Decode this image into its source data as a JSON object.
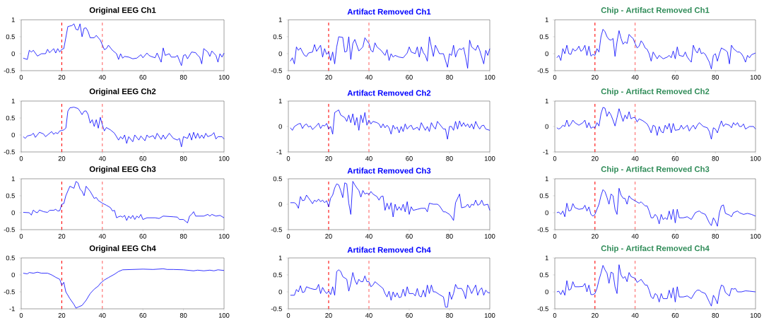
{
  "chart_data": [
    {
      "type": "line",
      "title": "Original EEG Ch1",
      "xlim": [
        0,
        100
      ],
      "xticks": [
        0,
        20,
        40,
        60,
        80,
        100
      ],
      "ylim": [
        -0.5,
        1
      ],
      "yticks": [
        -0.5,
        0,
        0.5,
        1
      ],
      "ref_lines": [
        {
          "axis": "x",
          "value": 20,
          "color": "#ff0000",
          "line_style": "dashed"
        },
        {
          "axis": "x",
          "value": 40,
          "color": "#ff6666",
          "line_style": "dashed"
        }
      ],
      "x": [
        1,
        3,
        4,
        5,
        6,
        8,
        10,
        12,
        13,
        14,
        16,
        17,
        18,
        19,
        20,
        21,
        23,
        25,
        26,
        27,
        28,
        29,
        30,
        31,
        32,
        33,
        34,
        36,
        37,
        39,
        41,
        42,
        43,
        45,
        47,
        48,
        49,
        50,
        51,
        53,
        55,
        57,
        59,
        60,
        62,
        63,
        64,
        66,
        67,
        69,
        70,
        71,
        73,
        74,
        76,
        77,
        79,
        80,
        81,
        82,
        84,
        86,
        87,
        88,
        89,
        90,
        92,
        93,
        94,
        96,
        97,
        98,
        99,
        100
      ],
      "series": [
        {
          "color": "#0000ff",
          "values": [
            -0.13,
            -0.17,
            0.1,
            0.05,
            0.1,
            -0.07,
            0,
            0,
            0.13,
            0.03,
            0.15,
            0.02,
            0.15,
            0.05,
            0.13,
            0.15,
            0.8,
            0.83,
            0.88,
            0.72,
            0.7,
            0.88,
            0.5,
            0.75,
            0.76,
            0.65,
            0.47,
            0.47,
            0.54,
            0.4,
            0.12,
            0.15,
            0.25,
            0.1,
            0,
            -0.17,
            0,
            -0.13,
            -0.08,
            -0.1,
            -0.15,
            -0.13,
            -0.03,
            -0.12,
            0.02,
            -0.05,
            -0.08,
            -0.12,
            0.02,
            -0.25,
            0.17,
            -0.05,
            0,
            -0.1,
            -0.1,
            -0.05,
            -0.35,
            -0.05,
            -0.03,
            -0.15,
            0.05,
            0.03,
            -0.05,
            -0.1,
            -0.3,
            0.15,
            0.05,
            -0.08,
            0.08,
            -0.05,
            -0.25,
            0,
            -0.1,
            0.02
          ]
        }
      ]
    },
    {
      "type": "line",
      "title": "Artifact Removed Ch1",
      "xlim": [
        0,
        100
      ],
      "xticks": [
        0,
        20,
        40,
        60,
        80,
        100
      ],
      "ylim": [
        -0.5,
        1
      ],
      "yticks": [
        -0.5,
        0,
        0.5,
        1
      ],
      "ref_lines": [
        {
          "axis": "x",
          "value": 20,
          "color": "#ff0000",
          "line_style": "dashed"
        },
        {
          "axis": "x",
          "value": 40,
          "color": "#ff6666",
          "line_style": "dashed"
        }
      ],
      "x": [
        1,
        2,
        3,
        4,
        5,
        6,
        7,
        8,
        9,
        10,
        12,
        13,
        14,
        16,
        17,
        18,
        19,
        20,
        21,
        22,
        23,
        24,
        25,
        27,
        28,
        29,
        30,
        31,
        32,
        33,
        34,
        35,
        37,
        38,
        40,
        41,
        42,
        43,
        44,
        46,
        48,
        49,
        50,
        51,
        52,
        53,
        55,
        57,
        59,
        60,
        61,
        63,
        64,
        65,
        66,
        67,
        68,
        69,
        70,
        71,
        72,
        73,
        75,
        77,
        79,
        80,
        81,
        82,
        83,
        84,
        85,
        86,
        87,
        88,
        89,
        90,
        91,
        93,
        94,
        95,
        97,
        98,
        99,
        100
      ],
      "series": [
        {
          "color": "#0000ff",
          "values": [
            -0.22,
            -0.12,
            -0.3,
            0.2,
            0.1,
            0.17,
            0.05,
            -0.05,
            -0.08,
            0.02,
            0.05,
            0.27,
            0.07,
            0.25,
            -0.1,
            0.15,
            -0.02,
            0.05,
            -0.2,
            0.05,
            -0.3,
            0.2,
            0.5,
            0.48,
            0.05,
            0.07,
            0.5,
            -0.17,
            0.3,
            0.42,
            0.25,
            0.08,
            0.2,
            0.47,
            0.3,
            0.1,
            0.05,
            0.32,
            0.2,
            0.1,
            -0.05,
            0.12,
            -0.2,
            0,
            -0.1,
            -0.05,
            -0.1,
            -0.12,
            0.02,
            0.2,
            0.05,
            0,
            0.2,
            -0.1,
            0.2,
            0.03,
            -0.05,
            -0.22,
            0.5,
            0.2,
            -0.08,
            0.25,
            0,
            0,
            -0.4,
            0,
            -0.05,
            0.25,
            -0.1,
            0.08,
            0.15,
            0.12,
            0.18,
            -0.1,
            -0.43,
            0.4,
            0.2,
            0.1,
            0.25,
            0.1,
            -0.3,
            0.1,
            -0.05,
            0.15
          ]
        }
      ]
    },
    {
      "type": "line",
      "title": "Chip - Artifact Removed Ch1",
      "xlim": [
        0,
        100
      ],
      "xticks": [
        0,
        20,
        40,
        60,
        80,
        100
      ],
      "ylim": [
        -0.5,
        1
      ],
      "yticks": [
        -0.5,
        0,
        0.5,
        1
      ],
      "ref_lines": [
        {
          "axis": "x",
          "value": 20,
          "color": "#ff0000",
          "line_style": "dashed"
        },
        {
          "axis": "x",
          "value": 40,
          "color": "#ff6666",
          "line_style": "dashed"
        }
      ],
      "x": [
        1,
        2,
        3,
        4,
        5,
        6,
        7,
        8,
        9,
        10,
        11,
        12,
        13,
        14,
        15,
        16,
        17,
        18,
        19,
        20,
        21,
        22,
        23,
        24,
        25,
        26,
        27,
        28,
        29,
        30,
        31,
        32,
        33,
        34,
        35,
        36,
        37,
        38,
        39,
        40,
        41,
        42,
        43,
        44,
        45,
        46,
        47,
        48,
        49,
        50,
        51,
        52,
        54,
        56,
        57,
        58,
        59,
        60,
        61,
        62,
        64,
        65,
        66,
        67,
        68,
        69,
        70,
        71,
        72,
        73,
        74,
        75,
        77,
        78,
        79,
        80,
        81,
        82,
        83,
        85,
        86,
        87,
        88,
        89,
        90,
        91,
        92,
        93,
        94,
        95,
        96,
        97,
        98,
        100
      ],
      "series": [
        {
          "color": "#0000ff",
          "values": [
            -0.12,
            -0.05,
            -0.2,
            0.15,
            0,
            0.25,
            0,
            -0.02,
            0.15,
            0.08,
            0.12,
            0.22,
            0.07,
            0.12,
            0.25,
            -0.05,
            0.22,
            -0.07,
            -0.02,
            -0.05,
            0.15,
            0.05,
            0.5,
            0.72,
            0.65,
            0.5,
            0.42,
            0.4,
            0.45,
            -0.08,
            0.35,
            0.68,
            0.45,
            0.28,
            0.35,
            0.3,
            0.57,
            0.5,
            0.45,
            0.3,
            0.17,
            0.22,
            0.38,
            0.3,
            0.17,
            0.13,
            0,
            -0.22,
            0.05,
            -0.05,
            -0.15,
            -0.05,
            -0.15,
            -0.1,
            -0.05,
            -0.12,
            0.08,
            -0.15,
            0.2,
            -0.05,
            -0.08,
            0.05,
            -0.1,
            -0.18,
            -0.25,
            0.25,
            0.1,
            0.02,
            0.17,
            0,
            0.03,
            -0.02,
            -0.25,
            -0.45,
            -0.05,
            0,
            -0.22,
            0,
            0.17,
            0.1,
            0.05,
            -0.3,
            0.25,
            0.15,
            0.1,
            0.05,
            0.05,
            0,
            -0.1,
            -0.25,
            -0.05,
            -0.12,
            -0.03,
            0.02
          ]
        }
      ]
    },
    {
      "type": "line",
      "title": "Original EEG Ch2",
      "xlim": [
        0,
        100
      ],
      "xticks": [
        0,
        20,
        40,
        60,
        80,
        100
      ],
      "ylim": [
        -0.5,
        1
      ],
      "yticks": [
        -0.5,
        0,
        0.5,
        1
      ],
      "ref_lines": [
        {
          "axis": "x",
          "value": 20,
          "color": "#ff0000",
          "line_style": "dashed"
        },
        {
          "axis": "x",
          "value": 40,
          "color": "#ff6666",
          "line_style": "dashed"
        }
      ],
      "x": [
        1,
        2,
        3,
        5,
        6,
        7,
        9,
        11,
        12,
        14,
        15,
        16,
        17,
        18,
        19,
        20,
        21,
        22,
        23,
        24,
        26,
        28,
        29,
        30,
        31,
        32,
        33,
        34,
        35,
        36,
        37,
        38,
        39,
        40,
        41,
        42,
        44,
        46,
        48,
        49,
        50,
        51,
        52,
        53,
        55,
        56,
        58,
        59,
        61,
        62,
        63,
        65,
        66,
        67,
        69,
        70,
        71,
        73,
        75,
        77,
        78,
        79,
        80,
        82,
        83,
        84,
        85,
        86,
        87,
        88,
        89,
        90,
        91,
        92,
        94,
        95,
        96,
        97,
        99,
        100
      ],
      "series": [
        {
          "color": "#0000ff",
          "values": [
            -0.05,
            -0.1,
            -0.03,
            0,
            0.05,
            -0.07,
            0.08,
            0.03,
            -0.05,
            0.05,
            0.1,
            0.02,
            0.07,
            0.04,
            0.12,
            0.13,
            0.15,
            0.2,
            0.7,
            0.8,
            0.82,
            0.78,
            0.7,
            0.6,
            0.7,
            0.71,
            0.6,
            0.35,
            0.45,
            0.25,
            0.45,
            0.2,
            0.52,
            0.3,
            0.12,
            0.22,
            0.15,
            0.05,
            -0.15,
            -0.05,
            -0.12,
            0,
            -0.25,
            -0.05,
            -0.2,
            0,
            -0.15,
            -0.03,
            -0.17,
            0,
            -0.07,
            -0.02,
            -0.12,
            0.05,
            -0.13,
            0,
            -0.12,
            0.05,
            -0.1,
            -0.15,
            -0.1,
            -0.35,
            -0.05,
            -0.1,
            0.05,
            -0.15,
            0.08,
            -0.1,
            0.05,
            -0.1,
            0,
            -0.1,
            0.05,
            -0.05,
            0,
            0.07,
            -0.12,
            -0.05,
            -0.05,
            -0.12
          ]
        }
      ]
    },
    {
      "type": "line",
      "title": "Artifact Removed Ch2",
      "xlim": [
        0,
        100
      ],
      "xticks": [
        0,
        20,
        40,
        60,
        80,
        100
      ],
      "ylim": [
        -1,
        1
      ],
      "yticks": [
        -1,
        0,
        1
      ],
      "ref_lines": [
        {
          "axis": "x",
          "value": 20,
          "color": "#ff0000",
          "line_style": "dashed"
        },
        {
          "axis": "x",
          "value": 40,
          "color": "#ff6666",
          "line_style": "dashed"
        }
      ],
      "x": [
        1,
        2,
        3,
        4,
        5,
        6,
        7,
        8,
        9,
        10,
        11,
        12,
        14,
        15,
        16,
        17,
        18,
        19,
        20,
        21,
        22,
        23,
        24,
        25,
        26,
        28,
        29,
        30,
        31,
        32,
        33,
        34,
        35,
        36,
        37,
        38,
        39,
        40,
        41,
        42,
        44,
        45,
        46,
        47,
        48,
        49,
        50,
        51,
        52,
        53,
        54,
        55,
        56,
        57,
        58,
        59,
        60,
        61,
        62,
        64,
        65,
        66,
        68,
        69,
        70,
        71,
        72,
        73,
        74,
        76,
        77,
        78,
        79,
        80,
        81,
        82,
        83,
        84,
        85,
        86,
        87,
        88,
        89,
        90,
        91,
        92,
        93,
        94,
        95,
        96,
        97,
        98,
        100
      ],
      "series": [
        {
          "color": "#0000ff",
          "values": [
            -0.05,
            -0.15,
            0,
            0.05,
            0.1,
            0.12,
            -0.08,
            0.05,
            0.1,
            -0.02,
            0.02,
            -0.12,
            0.03,
            0.13,
            -0.08,
            0.05,
            0.02,
            0.12,
            -0.1,
            0,
            -0.3,
            0.55,
            0.6,
            0.65,
            0.45,
            0.35,
            0.2,
            0.45,
            0.15,
            0.5,
            0.05,
            0.35,
            -0.15,
            0.45,
            0.15,
            0.55,
            0.05,
            0.25,
            0.1,
            0.2,
            0.15,
            0.1,
            -0.05,
            0.1,
            -0.05,
            0.05,
            -0.05,
            -0.3,
            0.05,
            -0.1,
            -0.02,
            -0.25,
            0,
            -0.2,
            0.1,
            -0.1,
            0,
            0.05,
            -0.12,
            -0.03,
            -0.15,
            0.15,
            -0.15,
            0,
            -0.2,
            0.15,
            0,
            -0.1,
            0.2,
            0,
            -0.1,
            -0.1,
            -0.5,
            0,
            0,
            -0.15,
            0.2,
            -0.1,
            0.22,
            0,
            0.15,
            0,
            0.1,
            -0.05,
            0.1,
            -0.1,
            0.2,
            0.02,
            -0.1,
            0.03,
            0.05,
            -0.1,
            -0.15
          ]
        }
      ]
    },
    {
      "type": "line",
      "title": "Chip - Artifact Removed Ch2",
      "xlim": [
        0,
        100
      ],
      "xticks": [
        0,
        20,
        40,
        60,
        80,
        100
      ],
      "ylim": [
        -1,
        1
      ],
      "yticks": [
        -1,
        0,
        1
      ],
      "ref_lines": [
        {
          "axis": "x",
          "value": 20,
          "color": "#ff0000",
          "line_style": "dashed"
        },
        {
          "axis": "x",
          "value": 40,
          "color": "#ff6666",
          "line_style": "dashed"
        }
      ],
      "x": [
        1,
        2,
        3,
        4,
        5,
        6,
        7,
        8,
        9,
        10,
        12,
        14,
        15,
        16,
        17,
        18,
        19,
        20,
        21,
        22,
        23,
        24,
        25,
        26,
        27,
        28,
        29,
        30,
        31,
        32,
        33,
        34,
        35,
        36,
        37,
        38,
        39,
        40,
        41,
        42,
        44,
        46,
        47,
        48,
        49,
        50,
        51,
        52,
        53,
        54,
        55,
        56,
        57,
        58,
        59,
        60,
        62,
        63,
        64,
        66,
        67,
        68,
        69,
        70,
        71,
        72,
        74,
        76,
        77,
        78,
        79,
        80,
        81,
        82,
        83,
        84,
        85,
        87,
        88,
        89,
        90,
        91,
        92,
        93,
        94,
        95,
        96,
        97,
        99,
        100
      ],
      "series": [
        {
          "color": "#0000ff",
          "values": [
            -0.05,
            -0.1,
            -0.05,
            0.05,
            0,
            0.25,
            0,
            0.1,
            0.25,
            0.15,
            0.05,
            0.15,
            0.25,
            -0.05,
            0.15,
            -0.07,
            -0.02,
            -0.05,
            0.15,
            0.02,
            0.5,
            0.75,
            0.72,
            0.4,
            0.58,
            0.45,
            0.25,
            0.02,
            0.35,
            0.7,
            0.45,
            0.2,
            0.45,
            0.3,
            0.58,
            0.3,
            0.35,
            0.35,
            0.18,
            0.3,
            0.22,
            0.1,
            -0.05,
            -0.25,
            0.05,
            0,
            -0.35,
            0,
            -0.2,
            -0.25,
            0.05,
            -0.1,
            0.12,
            -0.25,
            0.12,
            -0.15,
            -0.12,
            0.05,
            -0.1,
            0.05,
            -0.18,
            -0.05,
            0.05,
            -0.1,
            0.05,
            0.15,
            0,
            -0.05,
            -0.2,
            -0.5,
            -0.05,
            -0.1,
            -0.25,
            0,
            0.22,
            0,
            0.1,
            0.05,
            -0.05,
            0.15,
            0.05,
            0.15,
            0,
            0,
            0.1,
            -0.1,
            -0.05,
            0,
            0,
            -0.1
          ]
        }
      ]
    },
    {
      "type": "line",
      "title": "Original EEG Ch3",
      "xlim": [
        0,
        100
      ],
      "xticks": [
        0,
        20,
        40,
        60,
        80,
        100
      ],
      "ylim": [
        -0.5,
        1
      ],
      "yticks": [
        -0.5,
        0,
        0.5,
        1
      ],
      "ref_lines": [
        {
          "axis": "x",
          "value": 20,
          "color": "#ff0000",
          "line_style": "dashed"
        },
        {
          "axis": "x",
          "value": 40,
          "color": "#ff6666",
          "line_style": "dashed"
        }
      ],
      "x": [
        1,
        4,
        5,
        6,
        7,
        8,
        9,
        11,
        13,
        14,
        16,
        17,
        18,
        19,
        20,
        21,
        22,
        24,
        26,
        27,
        28,
        29,
        30,
        31,
        32,
        34,
        36,
        37,
        38,
        40,
        42,
        44,
        45,
        46,
        47,
        48,
        49,
        50,
        51,
        52,
        53,
        54,
        55,
        56,
        57,
        58,
        59,
        60,
        62,
        64,
        66,
        68,
        70,
        75,
        77,
        78,
        80,
        81,
        82,
        83,
        84,
        85,
        86,
        88,
        90,
        92,
        93,
        94,
        96,
        98,
        100
      ],
      "series": [
        {
          "color": "#0000ff",
          "values": [
            0.01,
            0,
            -0.07,
            0.08,
            0.02,
            0,
            0.08,
            0.03,
            0.01,
            0.07,
            0.07,
            0.1,
            0.05,
            0.06,
            0.25,
            0.27,
            0.5,
            0.78,
            0.72,
            0.92,
            0.88,
            0.7,
            0.63,
            0.5,
            0.78,
            0.63,
            0.42,
            0.45,
            0.36,
            0.28,
            0.22,
            0.15,
            0.05,
            0.07,
            -0.15,
            -0.12,
            -0.1,
            -0.13,
            -0.08,
            -0.23,
            -0.1,
            -0.17,
            -0.08,
            -0.2,
            -0.1,
            -0.15,
            -0.05,
            -0.2,
            -0.15,
            -0.15,
            -0.15,
            -0.17,
            -0.1,
            -0.12,
            -0.13,
            -0.2,
            -0.2,
            -0.25,
            -0.3,
            -0.1,
            -0.05,
            0.03,
            -0.1,
            -0.1,
            -0.1,
            -0.05,
            -0.1,
            -0.05,
            -0.1,
            -0.08,
            -0.15
          ]
        }
      ]
    },
    {
      "type": "line",
      "title": "Artifact Removed Ch3",
      "xlim": [
        0,
        100
      ],
      "xticks": [
        0,
        20,
        40,
        60,
        80,
        100
      ],
      "ylim": [
        -0.5,
        0.5
      ],
      "yticks": [
        -0.5,
        0,
        0.5
      ],
      "ref_lines": [
        {
          "axis": "x",
          "value": 20,
          "color": "#ff0000",
          "line_style": "dashed"
        },
        {
          "axis": "x",
          "value": 40,
          "color": "#ff6666",
          "line_style": "dashed"
        }
      ],
      "x": [
        1,
        3,
        4,
        5,
        6,
        7,
        8,
        9,
        11,
        12,
        13,
        14,
        15,
        16,
        17,
        18,
        19,
        20,
        21,
        22,
        23,
        24,
        25,
        26,
        27,
        28,
        29,
        30,
        31,
        32,
        33,
        34,
        35,
        36,
        37,
        38,
        39,
        40,
        41,
        42,
        44,
        45,
        46,
        47,
        48,
        49,
        50,
        51,
        52,
        53,
        54,
        55,
        56,
        57,
        58,
        59,
        60,
        61,
        62,
        64,
        66,
        68,
        69,
        70,
        72,
        74,
        75,
        77,
        78,
        80,
        81,
        82,
        83,
        85,
        86,
        88,
        89,
        90,
        91,
        92,
        93,
        94,
        95,
        96,
        97,
        99,
        100
      ],
      "series": [
        {
          "color": "#0000ff",
          "values": [
            0.03,
            0.03,
            0,
            -0.08,
            0.15,
            0.07,
            0.08,
            0.18,
            0.07,
            0.01,
            0.08,
            0.05,
            0.1,
            0.05,
            0.08,
            0.03,
            0.07,
            -0.05,
            0.12,
            0.18,
            0.32,
            0.4,
            0.38,
            0.27,
            0.13,
            0.42,
            0.4,
            0.02,
            -0.2,
            0.45,
            0.38,
            0.32,
            0.27,
            0.14,
            0.27,
            0.2,
            0.22,
            0.19,
            0.25,
            0.2,
            0.15,
            0.08,
            0.15,
            0.16,
            -0.12,
            0.02,
            -0.1,
            0.03,
            -0.25,
            0,
            -0.12,
            -0.05,
            -0.12,
            0,
            -0.15,
            0.05,
            -0.2,
            -0.05,
            -0.12,
            -0.1,
            -0.08,
            -0.08,
            -0.15,
            0.02,
            0,
            0,
            -0.03,
            -0.15,
            -0.15,
            -0.2,
            -0.25,
            -0.32,
            0.03,
            0.2,
            -0.07,
            -0.05,
            0,
            -0.07,
            0,
            -0.02,
            0.08,
            -0.02,
            0,
            0.08,
            -0.02,
            0,
            -0.12
          ]
        }
      ]
    },
    {
      "type": "line",
      "title": "Chip - Artifact Removed Ch3",
      "xlim": [
        0,
        100
      ],
      "xticks": [
        0,
        20,
        40,
        60,
        80,
        100
      ],
      "ylim": [
        -0.5,
        1
      ],
      "yticks": [
        -0.5,
        0,
        0.5,
        1
      ],
      "ref_lines": [
        {
          "axis": "x",
          "value": 20,
          "color": "#ff0000",
          "line_style": "dashed"
        },
        {
          "axis": "x",
          "value": 40,
          "color": "#ff6666",
          "line_style": "dashed"
        }
      ],
      "x": [
        1,
        2,
        3,
        4,
        5,
        6,
        7,
        8,
        9,
        10,
        12,
        14,
        15,
        16,
        17,
        18,
        19,
        20,
        21,
        22,
        23,
        24,
        25,
        26,
        27,
        28,
        29,
        30,
        31,
        32,
        33,
        34,
        35,
        36,
        37,
        38,
        40,
        42,
        43,
        45,
        46,
        47,
        48,
        49,
        50,
        51,
        52,
        53,
        54,
        55,
        56,
        57,
        58,
        59,
        60,
        61,
        62,
        64,
        66,
        68,
        69,
        70,
        71,
        72,
        73,
        75,
        77,
        78,
        79,
        80,
        81,
        82,
        83,
        84,
        85,
        87,
        88,
        89,
        91,
        92,
        94,
        96,
        98,
        100
      ],
      "series": [
        {
          "color": "#0000ff",
          "values": [
            0,
            0.02,
            -0.05,
            0.05,
            -0.12,
            0.28,
            0.05,
            0.07,
            0.27,
            0.15,
            0.1,
            0.12,
            0.22,
            0.05,
            0.17,
            -0.05,
            -0.1,
            -0.05,
            0.1,
            0.25,
            0.5,
            0.68,
            0.62,
            0.45,
            0.25,
            0.55,
            0.5,
            0.1,
            -0.05,
            0.72,
            0.52,
            0.43,
            0.42,
            0.25,
            0.5,
            0.42,
            0.35,
            0.28,
            0.32,
            0.2,
            0.2,
            0.05,
            -0.15,
            -0.15,
            -0.05,
            -0.12,
            -0.33,
            -0.05,
            -0.2,
            -0.15,
            -0.2,
            0.05,
            -0.2,
            0.1,
            -0.3,
            0.1,
            -0.15,
            -0.15,
            -0.12,
            -0.2,
            -0.1,
            0,
            0.03,
            0.05,
            0,
            -0.05,
            -0.3,
            -0.38,
            -0.15,
            -0.25,
            -0.4,
            0,
            0.2,
            0.23,
            -0.02,
            -0.07,
            -0.12,
            0,
            0.05,
            0,
            -0.05,
            -0.02,
            -0.05,
            -0.1
          ]
        }
      ]
    },
    {
      "type": "line",
      "title": "Original EEG Ch4",
      "xlim": [
        0,
        100
      ],
      "xticks": [
        0,
        20,
        40,
        60,
        80,
        100
      ],
      "ylim": [
        -1,
        0.5
      ],
      "yticks": [
        -1,
        -0.5,
        0,
        0.5
      ],
      "ref_lines": [
        {
          "axis": "x",
          "value": 20,
          "color": "#ff0000",
          "line_style": "dashed"
        },
        {
          "axis": "x",
          "value": 40,
          "color": "#ff6666",
          "line_style": "dashed"
        }
      ],
      "x": [
        1,
        3,
        4,
        6,
        8,
        10,
        13,
        15,
        17,
        19,
        20,
        21,
        22,
        24,
        26,
        27,
        28,
        30,
        32,
        34,
        36,
        38,
        39,
        41,
        43,
        46,
        48,
        50,
        55,
        60,
        65,
        70,
        72,
        75,
        80,
        85,
        87,
        90,
        93,
        95,
        97,
        100
      ],
      "series": [
        {
          "color": "#0000ff",
          "values": [
            0.05,
            0.03,
            0.07,
            0.05,
            0.08,
            0.05,
            0.05,
            0,
            -0.07,
            -0.13,
            -0.3,
            -0.22,
            -0.5,
            -0.7,
            -0.87,
            -0.98,
            -0.95,
            -0.9,
            -0.75,
            -0.55,
            -0.42,
            -0.33,
            -0.25,
            -0.15,
            -0.08,
            0.02,
            0.1,
            0.15,
            0.16,
            0.17,
            0.16,
            0.18,
            0.16,
            0.16,
            0.15,
            0.12,
            0.14,
            0.12,
            0.14,
            0.12,
            0.15,
            0.13
          ]
        }
      ]
    },
    {
      "type": "line",
      "title": "Artifact Removed Ch4",
      "xlim": [
        0,
        100
      ],
      "xticks": [
        0,
        20,
        40,
        60,
        80,
        100
      ],
      "ylim": [
        -0.5,
        1
      ],
      "yticks": [
        -0.5,
        0,
        0.5,
        1
      ],
      "ref_lines": [
        {
          "axis": "x",
          "value": 20,
          "color": "#ff0000",
          "line_style": "dashed"
        },
        {
          "axis": "x",
          "value": 40,
          "color": "#ff6666",
          "line_style": "dashed"
        }
      ],
      "x": [
        1,
        3,
        4,
        5,
        6,
        7,
        8,
        9,
        11,
        13,
        14,
        15,
        16,
        17,
        18,
        19,
        20,
        21,
        22,
        23,
        24,
        25,
        26,
        27,
        29,
        30,
        31,
        32,
        33,
        34,
        35,
        36,
        37,
        38,
        39,
        40,
        41,
        42,
        43,
        45,
        47,
        48,
        49,
        50,
        51,
        52,
        53,
        54,
        55,
        56,
        57,
        58,
        59,
        60,
        62,
        63,
        64,
        65,
        66,
        67,
        68,
        69,
        70,
        71,
        72,
        73,
        75,
        77,
        78,
        79,
        80,
        81,
        82,
        83,
        84,
        86,
        87,
        88,
        89,
        90,
        91,
        92,
        93,
        94,
        95,
        96,
        97,
        98,
        99,
        100
      ],
      "series": [
        {
          "color": "#0000ff",
          "values": [
            -0.1,
            -0.1,
            0.07,
            0,
            0.18,
            -0.02,
            0,
            0.15,
            0.1,
            0.07,
            0.08,
            0.22,
            -0.05,
            0.13,
            0.02,
            -0.05,
            0.02,
            -0.08,
            0.15,
            -0.1,
            0.6,
            0.65,
            0.6,
            0.45,
            0.37,
            0.02,
            0.25,
            0.57,
            0.35,
            0.22,
            0.37,
            0.3,
            0.3,
            0.47,
            0.3,
            0.3,
            0.15,
            0.2,
            0.3,
            0.2,
            0.1,
            -0.05,
            -0.15,
            0.02,
            -0.25,
            0,
            -0.15,
            -0.03,
            -0.17,
            -0.15,
            0.08,
            -0.13,
            0.15,
            -0.05,
            -0.05,
            -0.12,
            0.1,
            -0.12,
            -0.15,
            0.05,
            -0.15,
            0.2,
            -0.05,
            0.2,
            0,
            0,
            -0.08,
            -0.15,
            -0.45,
            -0.45,
            0,
            -0.22,
            -0.05,
            0.22,
            0.1,
            0.1,
            0,
            -0.2,
            0.2,
            0.1,
            -0.05,
            0.08,
            0.2,
            -0.1,
            0.05,
            0.12,
            -0.1,
            0.05,
            -0.02,
            -0.03
          ]
        }
      ]
    },
    {
      "type": "line",
      "title": "Chip - Artifact Removed Ch4",
      "xlim": [
        0,
        100
      ],
      "xticks": [
        0,
        20,
        40,
        60,
        80,
        100
      ],
      "ylim": [
        -0.5,
        1
      ],
      "yticks": [
        -0.5,
        0,
        0.5,
        1
      ],
      "ref_lines": [
        {
          "axis": "x",
          "value": 20,
          "color": "#ff0000",
          "line_style": "dashed"
        },
        {
          "axis": "x",
          "value": 40,
          "color": "#ff6666",
          "line_style": "dashed"
        }
      ],
      "x": [
        1,
        2,
        3,
        4,
        5,
        6,
        7,
        8,
        9,
        10,
        12,
        14,
        15,
        16,
        17,
        18,
        19,
        20,
        21,
        22,
        23,
        24,
        25,
        26,
        27,
        28,
        29,
        30,
        31,
        32,
        33,
        34,
        35,
        36,
        37,
        38,
        40,
        41,
        42,
        43,
        45,
        46,
        47,
        48,
        49,
        50,
        51,
        52,
        53,
        54,
        56,
        57,
        58,
        59,
        60,
        61,
        62,
        64,
        66,
        68,
        69,
        70,
        71,
        72,
        73,
        75,
        77,
        78,
        79,
        80,
        81,
        82,
        83,
        84,
        85,
        87,
        88,
        89,
        90,
        91,
        93,
        95,
        97,
        100
      ],
      "series": [
        {
          "color": "#0000ff",
          "values": [
            0,
            0.02,
            -0.08,
            0.05,
            -0.1,
            0.33,
            0.05,
            0.08,
            0.3,
            0.15,
            0.15,
            0.16,
            0.25,
            0,
            0.2,
            -0.08,
            -0.08,
            -0.05,
            0.1,
            0.35,
            0.55,
            0.78,
            0.65,
            0.55,
            0.25,
            0.58,
            0.55,
            0.15,
            -0.05,
            0.8,
            0.5,
            0.4,
            0.45,
            0.3,
            0.57,
            0.45,
            0.4,
            0.28,
            0.32,
            0.37,
            0.2,
            0.2,
            0.05,
            -0.15,
            -0.2,
            -0.05,
            -0.1,
            -0.3,
            -0.05,
            -0.2,
            -0.2,
            0.05,
            -0.18,
            0.12,
            -0.3,
            0.15,
            -0.15,
            -0.15,
            -0.12,
            -0.2,
            -0.1,
            0,
            0.05,
            0.05,
            0,
            -0.05,
            -0.3,
            -0.42,
            -0.1,
            -0.2,
            -0.35,
            0,
            0.2,
            0.17,
            -0.02,
            -0.12,
            0.1,
            0.08,
            0.1,
            0,
            0,
            0.03,
            0.02,
            0
          ]
        }
      ]
    }
  ]
}
